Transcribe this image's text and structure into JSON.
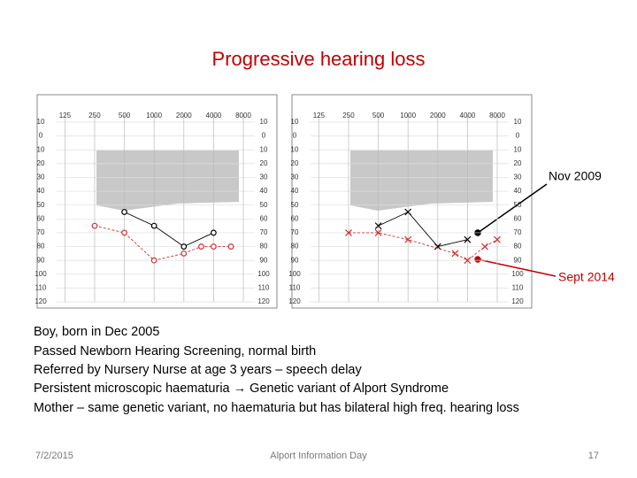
{
  "title": "Progressive hearing loss",
  "chart_data": [
    {
      "type": "audiogram",
      "xscale": "log",
      "inverted": true,
      "grid": true,
      "xlim": [
        103,
        10460
      ],
      "xticks": [
        125,
        250,
        500,
        1000,
        2000,
        4000,
        8000
      ],
      "ylim": [
        -10,
        120
      ],
      "yticks": [
        {
          "value": -10,
          "label": "10"
        },
        0,
        10,
        20,
        30,
        40,
        50,
        60,
        70,
        80,
        90,
        100,
        110,
        120
      ],
      "series": [
        {
          "color": "#000000",
          "marker": "circle",
          "linestyle": "solid",
          "x": [
            500,
            1000,
            2000,
            4000
          ],
          "values": [
            55,
            65,
            80,
            70
          ]
        },
        {
          "color": "#d03030",
          "marker": "circle",
          "linestyle": "dashed",
          "x": [
            250,
            500,
            1000,
            2000,
            3000,
            4000,
            6000
          ],
          "values": [
            65,
            70,
            90,
            85,
            80,
            80,
            80
          ]
        }
      ]
    },
    {
      "type": "audiogram",
      "xscale": "log",
      "inverted": true,
      "grid": true,
      "xlim": [
        103,
        10460
      ],
      "xticks": [
        125,
        250,
        500,
        1000,
        2000,
        4000,
        8000
      ],
      "ylim": [
        -10,
        120
      ],
      "yticks": [
        {
          "value": -10,
          "label": "10"
        },
        0,
        10,
        20,
        30,
        40,
        50,
        60,
        70,
        80,
        90,
        100,
        110,
        120
      ],
      "series": [
        {
          "color": "#000000",
          "marker": "cross",
          "linestyle": "solid",
          "x": [
            500,
            1000,
            2000,
            4000
          ],
          "values": [
            65,
            55,
            80,
            75
          ]
        },
        {
          "color": "#d03030",
          "marker": "cross",
          "linestyle": "dashed",
          "x": [
            250,
            500,
            1000,
            3000,
            4000,
            6000,
            8000
          ],
          "values": [
            70,
            70,
            75,
            85,
            90,
            80,
            75
          ]
        }
      ]
    }
  ],
  "annotations": [
    "Nov 2009",
    "Sept 2014"
  ],
  "body": [
    "Boy, born in Dec 2005",
    "Passed Newborn Hearing Screening, normal birth",
    "Referred by Nursery Nurse at age 3 years – speech delay",
    "Persistent microscopic haematuria → Genetic variant of Alport Syndrome",
    "Mother – same genetic variant, no haematuria but has bilateral high freq. hearing loss"
  ],
  "footer": {
    "date": "7/2/2015",
    "center": "Alport Information Day",
    "page": "17"
  }
}
